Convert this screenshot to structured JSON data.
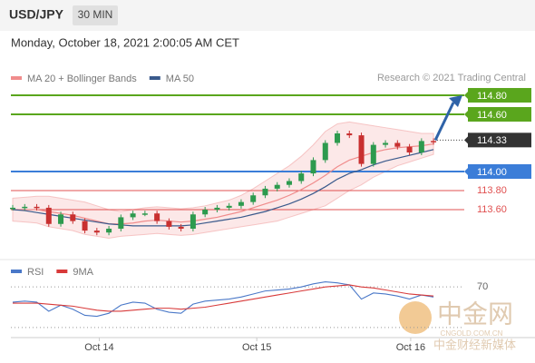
{
  "header": {
    "symbol": "USD/JPY",
    "interval": "30 MIN",
    "datetime": "Monday, October 18, 2021 2:00:05 AM CET"
  },
  "credit": "Research © 2021 Trading Central",
  "watermark": {
    "brand": "中金网",
    "site": "CNGOLD.COM.CN",
    "tagline": "中金财经新媒体"
  },
  "chart_data": [
    {
      "type": "candlestick",
      "legend": [
        {
          "name": "MA 20 + Bollinger Bands",
          "color": "#f08c8c"
        },
        {
          "name": "MA 50",
          "color": "#3a5a8c"
        }
      ],
      "close": [
        113.62,
        113.63,
        113.62,
        113.45,
        113.55,
        113.48,
        113.38,
        113.36,
        113.4,
        113.52,
        113.56,
        113.56,
        113.48,
        113.42,
        113.4,
        113.55,
        113.6,
        113.62,
        113.64,
        113.68,
        113.75,
        113.82,
        113.86,
        113.9,
        113.98,
        114.12,
        114.3,
        114.4,
        114.38,
        114.08,
        114.28,
        114.3,
        114.26,
        114.2,
        114.32,
        114.31
      ],
      "ma20": [
        113.6,
        113.6,
        113.6,
        113.58,
        113.56,
        113.54,
        113.51,
        113.48,
        113.45,
        113.45,
        113.46,
        113.48,
        113.49,
        113.48,
        113.47,
        113.48,
        113.5,
        113.52,
        113.55,
        113.58,
        113.62,
        113.66,
        113.7,
        113.75,
        113.81,
        113.88,
        113.96,
        114.05,
        114.12,
        114.16,
        114.2,
        114.23,
        114.25,
        114.26,
        114.27,
        114.29
      ],
      "band_upper": [
        113.72,
        113.73,
        113.74,
        113.74,
        113.72,
        113.7,
        113.68,
        113.64,
        113.6,
        113.58,
        113.6,
        113.62,
        113.63,
        113.62,
        113.61,
        113.62,
        113.64,
        113.67,
        113.7,
        113.75,
        113.82,
        113.9,
        113.98,
        114.06,
        114.16,
        114.28,
        114.42,
        114.5,
        114.52,
        114.5,
        114.48,
        114.46,
        114.44,
        114.42,
        114.4,
        114.4
      ],
      "band_lower": [
        113.48,
        113.47,
        113.46,
        113.42,
        113.4,
        113.38,
        113.34,
        113.32,
        113.3,
        113.32,
        113.33,
        113.34,
        113.35,
        113.34,
        113.33,
        113.34,
        113.36,
        113.38,
        113.4,
        113.42,
        113.44,
        113.46,
        113.48,
        113.52,
        113.56,
        113.6,
        113.64,
        113.72,
        113.8,
        113.86,
        113.94,
        114.0,
        114.06,
        114.1,
        114.14,
        114.18
      ],
      "ma50": [
        113.6,
        113.59,
        113.57,
        113.55,
        113.53,
        113.51,
        113.49,
        113.47,
        113.45,
        113.44,
        113.43,
        113.43,
        113.43,
        113.43,
        113.43,
        113.44,
        113.46,
        113.48,
        113.5,
        113.52,
        113.55,
        113.58,
        113.62,
        113.66,
        113.71,
        113.77,
        113.84,
        113.92,
        113.98,
        114.02,
        114.07,
        114.11,
        114.14,
        114.17,
        114.2,
        114.23
      ],
      "ylim": [
        113.086,
        114.895
      ],
      "levels": [
        {
          "value": 114.8,
          "label": "114.80",
          "color": "#5aa61d",
          "style": "box"
        },
        {
          "value": 114.6,
          "label": "114.60",
          "color": "#5aa61d",
          "style": "box"
        },
        {
          "value": 114.33,
          "label": "114.33",
          "color": "#333333",
          "style": "current"
        },
        {
          "value": 114.0,
          "label": "114.00",
          "color": "#3b7dd8",
          "style": "box"
        },
        {
          "value": 113.8,
          "label": "113.80",
          "color": "#e05050",
          "style": "text"
        },
        {
          "value": 113.6,
          "label": "113.60",
          "color": "#e05050",
          "style": "text"
        }
      ],
      "xticks": [
        {
          "value": 7.2,
          "label": "Oct 14"
        },
        {
          "value": 20.3,
          "label": "Oct 15"
        },
        {
          "value": 33.1,
          "label": "Oct 16"
        }
      ]
    },
    {
      "type": "line",
      "series": [
        {
          "name": "RSI",
          "color": "#4a78c8",
          "values": [
            55,
            56,
            55,
            46,
            52,
            48,
            42,
            41,
            44,
            52,
            55,
            54,
            48,
            45,
            44,
            53,
            56,
            57,
            58,
            60,
            63,
            66,
            67,
            68,
            70,
            73,
            75,
            74,
            72,
            58,
            64,
            63,
            61,
            58,
            62,
            60
          ]
        },
        {
          "name": "9MA",
          "color": "#d83a3a",
          "values": [
            54,
            54,
            54,
            53,
            52,
            51,
            49,
            47,
            46,
            46,
            47,
            48,
            49,
            49,
            48,
            49,
            50,
            52,
            54,
            56,
            58,
            60,
            62,
            64,
            66,
            68,
            70,
            71,
            72,
            70,
            69,
            67,
            65,
            63,
            62,
            61
          ]
        }
      ],
      "ylim": [
        20,
        80
      ],
      "yticks": [
        70
      ],
      "guides": [
        70,
        30
      ]
    }
  ]
}
